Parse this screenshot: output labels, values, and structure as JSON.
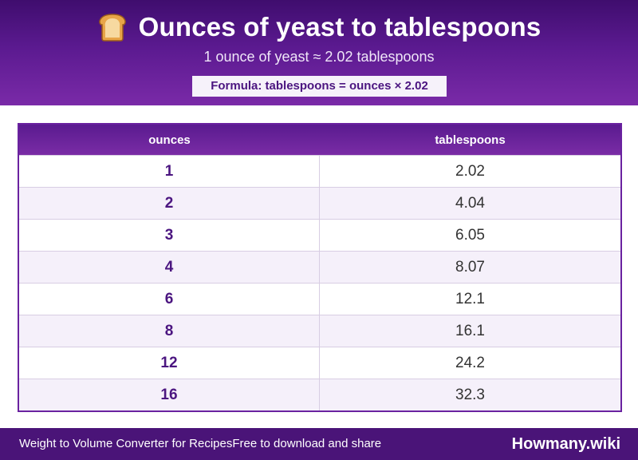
{
  "header": {
    "title": "Ounces of yeast to tablespoons",
    "title_icon": "bread-icon",
    "subtitle": "1 ounce of yeast ≈ 2.02 tablespoons",
    "formula": "Formula: tablespoons = ounces × 2.02"
  },
  "table": {
    "columns": [
      "ounces",
      "tablespoons"
    ],
    "rows": [
      [
        "1",
        "2.02"
      ],
      [
        "2",
        "4.04"
      ],
      [
        "3",
        "6.05"
      ],
      [
        "4",
        "8.07"
      ],
      [
        "6",
        "12.1"
      ],
      [
        "8",
        "16.1"
      ],
      [
        "12",
        "24.2"
      ],
      [
        "16",
        "32.3"
      ]
    ]
  },
  "footer": {
    "text1": "Weight to Volume Converter for Recipes",
    "text2": "Free to download and share",
    "brand": "Howmany.wiki"
  },
  "colors": {
    "header_purple": "#5b1a90",
    "accent_purple": "#4b1580",
    "footer_purple": "#4a1478",
    "alt_row": "#f5f0fa"
  }
}
